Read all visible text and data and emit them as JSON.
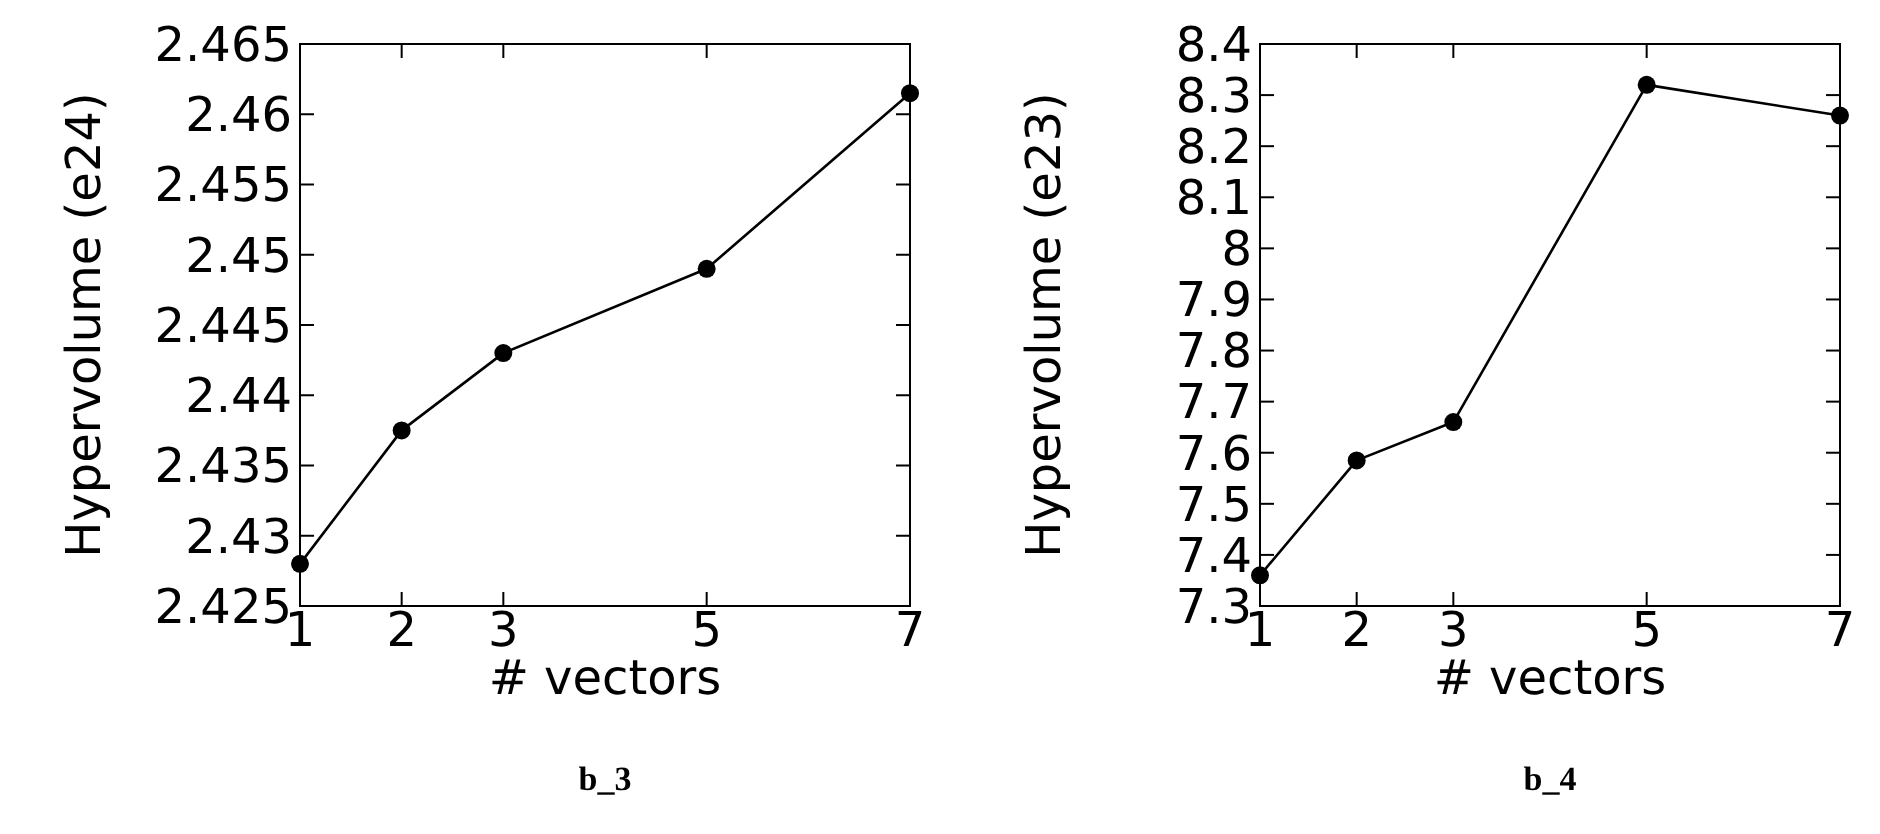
{
  "chart_data": [
    {
      "type": "line",
      "xlabel": "# vectors",
      "ylabel": "Hypervolume (e24)",
      "x": [
        1,
        2,
        3,
        5,
        7
      ],
      "xlim": [
        1,
        7
      ],
      "xticks": [
        1,
        2,
        3,
        5,
        7
      ],
      "ylim": [
        2.425,
        2.465
      ],
      "yticks": [
        2.425,
        2.43,
        2.435,
        2.44,
        2.445,
        2.45,
        2.455,
        2.46,
        2.465
      ],
      "series": [
        {
          "color": "#000000",
          "values": [
            2.428,
            2.4375,
            2.443,
            2.449,
            2.4615
          ]
        }
      ],
      "marker": "circle",
      "annotations": [
        "b_3"
      ]
    },
    {
      "type": "line",
      "xlabel": "# vectors",
      "ylabel": "Hypervolume (e23)",
      "x": [
        1,
        2,
        3,
        5,
        7
      ],
      "xlim": [
        1,
        7
      ],
      "xticks": [
        1,
        2,
        3,
        5,
        7
      ],
      "ylim": [
        7.3,
        8.4
      ],
      "yticks": [
        7.3,
        7.4,
        7.5,
        7.6,
        7.7,
        7.8,
        7.9,
        8,
        8.1,
        8.2,
        8.3,
        8.4
      ],
      "series": [
        {
          "color": "#000000",
          "values": [
            7.36,
            7.585,
            7.66,
            8.32,
            8.26
          ]
        }
      ],
      "marker": "circle",
      "annotations": [
        "b_4"
      ]
    }
  ]
}
